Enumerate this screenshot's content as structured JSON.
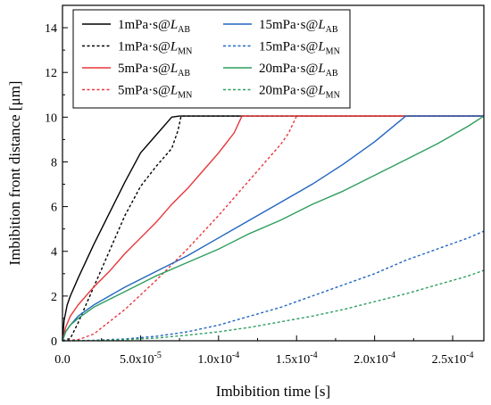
{
  "chart_data": {
    "type": "line",
    "xlabel": "Imbibition time [s]",
    "ylabel": "Imbibition front distance [μm]",
    "xlim": [
      0,
      0.00027
    ],
    "ylim": [
      0,
      15
    ],
    "x_ticks": [
      0,
      5e-05,
      0.0001,
      0.00015,
      0.0002,
      0.00025
    ],
    "x_tick_labels": [
      "0.0",
      "5.0x10-5",
      "1.0x10-4",
      "1.5x10-4",
      "2.0x10-4",
      "2.5x10-4"
    ],
    "y_ticks": [
      0,
      2,
      4,
      6,
      8,
      10,
      12,
      14
    ],
    "y_tick_labels": [
      "0",
      "2",
      "4",
      "6",
      "8",
      "10",
      "12",
      "14"
    ],
    "grid": false,
    "legend_position": "top-left",
    "series": [
      {
        "label_base": "1mPa·s@",
        "label_sym": "L",
        "label_sub": "AB",
        "color": "#000000",
        "dash": "solid",
        "x": [
          0,
          1e-06,
          3e-06,
          5e-06,
          1e-05,
          2e-05,
          3e-05,
          4e-05,
          5e-05,
          6e-05,
          7e-05,
          7.2e-05,
          7.5e-05,
          0.0001,
          0.00027
        ],
        "y": [
          0,
          0.9,
          1.6,
          2.0,
          2.8,
          4.3,
          5.7,
          7.1,
          8.4,
          9.2,
          10.0,
          10.02,
          10.05,
          10.05,
          10.05
        ]
      },
      {
        "label_base": "1mPa·s@",
        "label_sym": "L",
        "label_sub": "MN",
        "color": "#000000",
        "dash": "dashed",
        "x": [
          0,
          5e-06,
          1e-05,
          2e-05,
          3e-05,
          4e-05,
          5e-05,
          6e-05,
          7e-05,
          7.4e-05,
          7.6e-05,
          0.0001,
          0.00027
        ],
        "y": [
          0,
          0.1,
          0.8,
          2.4,
          4.0,
          5.6,
          6.9,
          7.8,
          8.6,
          9.4,
          10.05,
          10.05,
          10.05
        ]
      },
      {
        "label_base": "5mPa·s@",
        "label_sym": "L",
        "label_sub": "AB",
        "color": "#e8363a",
        "dash": "solid",
        "x": [
          0,
          2e-06,
          5e-06,
          1e-05,
          2e-05,
          3e-05,
          4e-05,
          5e-05,
          6e-05,
          7e-05,
          8e-05,
          9e-05,
          0.0001,
          0.00011,
          0.000115,
          0.00015,
          0.00027
        ],
        "y": [
          0,
          0.6,
          1.1,
          1.6,
          2.4,
          3.1,
          3.9,
          4.6,
          5.3,
          6.1,
          6.8,
          7.6,
          8.4,
          9.3,
          10.05,
          10.05,
          10.05
        ]
      },
      {
        "label_base": "5mPa·s@",
        "label_sym": "L",
        "label_sub": "MN",
        "color": "#e8363a",
        "dash": "dashed",
        "x": [
          0,
          1e-05,
          2e-05,
          4e-05,
          6e-05,
          8e-05,
          0.0001,
          0.00012,
          0.00013,
          0.00014,
          0.000145,
          0.00015,
          0.00017,
          0.00027
        ],
        "y": [
          0,
          0.05,
          0.3,
          1.4,
          2.7,
          4.1,
          5.6,
          7.2,
          8.0,
          8.8,
          9.3,
          10.05,
          10.05,
          10.05
        ]
      },
      {
        "label_base": "15mPa·s@",
        "label_sym": "L",
        "label_sub": "AB",
        "color": "#2166c1",
        "dash": "solid",
        "x": [
          0,
          2e-06,
          5e-06,
          1e-05,
          2e-05,
          4e-05,
          6e-05,
          8e-05,
          0.0001,
          0.00012,
          0.00014,
          0.00016,
          0.00018,
          0.0002,
          0.00022,
          0.00027
        ],
        "y": [
          0,
          0.4,
          0.7,
          1.1,
          1.6,
          2.4,
          3.1,
          3.8,
          4.6,
          5.4,
          6.2,
          7.0,
          7.9,
          8.9,
          10.05,
          10.05
        ]
      },
      {
        "label_base": "15mPa·s@",
        "label_sym": "L",
        "label_sub": "MN",
        "color": "#2166c1",
        "dash": "dashed",
        "x": [
          0,
          2e-05,
          4e-05,
          6e-05,
          8e-05,
          0.0001,
          0.00012,
          0.00014,
          0.00016,
          0.00018,
          0.0002,
          0.00022,
          0.00024,
          0.00026,
          0.00027
        ],
        "y": [
          0,
          0.02,
          0.08,
          0.2,
          0.4,
          0.7,
          1.1,
          1.5,
          2.0,
          2.5,
          3.0,
          3.6,
          4.1,
          4.6,
          4.9
        ]
      },
      {
        "label_base": "20mPa·s@",
        "label_sym": "L",
        "label_sub": "AB",
        "color": "#2e9e5f",
        "dash": "solid",
        "x": [
          0,
          2e-06,
          5e-06,
          1e-05,
          2e-05,
          4e-05,
          6e-05,
          8e-05,
          0.0001,
          0.00012,
          0.00014,
          0.00016,
          0.00018,
          0.0002,
          0.00022,
          0.00024,
          0.00026,
          0.00027
        ],
        "y": [
          0,
          0.4,
          0.7,
          1.0,
          1.5,
          2.2,
          2.9,
          3.5,
          4.1,
          4.8,
          5.4,
          6.1,
          6.7,
          7.4,
          8.1,
          8.8,
          9.6,
          10.05
        ]
      },
      {
        "label_base": "20mPa·s@",
        "label_sym": "L",
        "label_sub": "MN",
        "color": "#2e9e5f",
        "dash": "dashed",
        "x": [
          0,
          2e-05,
          4e-05,
          6e-05,
          8e-05,
          0.0001,
          0.00012,
          0.00014,
          0.00016,
          0.00018,
          0.0002,
          0.00022,
          0.00024,
          0.00026,
          0.00027
        ],
        "y": [
          0,
          0.01,
          0.05,
          0.12,
          0.25,
          0.4,
          0.6,
          0.85,
          1.1,
          1.4,
          1.75,
          2.1,
          2.5,
          2.9,
          3.15
        ]
      }
    ]
  }
}
